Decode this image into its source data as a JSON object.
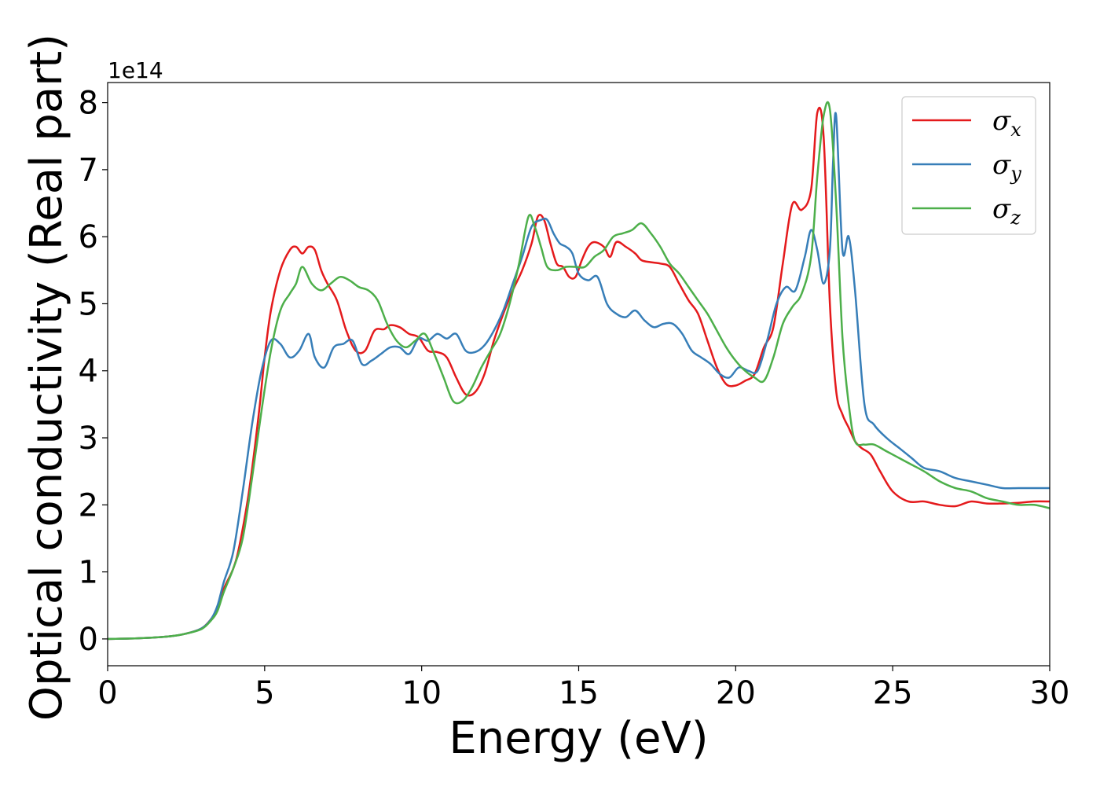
{
  "chart_data": {
    "type": "line",
    "title": "",
    "xlabel": "Energy (eV)",
    "ylabel": "Optical conductivity (Real part)",
    "y_offset_label": "1e14",
    "y_scale": 100000000000000.0,
    "xlim": [
      0,
      30
    ],
    "ylim": [
      -0.4,
      8.3
    ],
    "x_ticks": [
      0,
      5,
      10,
      15,
      20,
      25,
      30
    ],
    "y_ticks": [
      0,
      1,
      2,
      3,
      4,
      5,
      6,
      7,
      8
    ],
    "grid": false,
    "legend_position": "top-right",
    "series": [
      {
        "name": "σx",
        "symbol": "σ",
        "subscript": "x",
        "color": "#e41a1c",
        "x": [
          0,
          1,
          2,
          2.5,
          3,
          3.3,
          3.5,
          3.7,
          4.0,
          4.2,
          4.5,
          4.8,
          5.0,
          5.2,
          5.5,
          5.8,
          6.0,
          6.2,
          6.4,
          6.6,
          6.8,
          7.0,
          7.3,
          7.6,
          7.9,
          8.2,
          8.5,
          8.8,
          9.0,
          9.3,
          9.6,
          9.9,
          10.2,
          10.5,
          10.8,
          11.1,
          11.4,
          11.7,
          12.0,
          12.3,
          12.6,
          12.9,
          13.2,
          13.5,
          13.7,
          13.9,
          14.1,
          14.3,
          14.5,
          14.7,
          14.9,
          15.1,
          15.3,
          15.5,
          15.8,
          16.0,
          16.2,
          16.5,
          16.8,
          17.0,
          17.3,
          17.6,
          17.9,
          18.2,
          18.5,
          18.8,
          19.1,
          19.4,
          19.7,
          20.0,
          20.3,
          20.6,
          20.9,
          21.2,
          21.5,
          21.8,
          22.1,
          22.4,
          22.6,
          22.8,
          23.0,
          23.2,
          23.4,
          23.6,
          23.8,
          24.0,
          24.3,
          24.6,
          25.0,
          25.5,
          26.0,
          26.5,
          27.0,
          27.5,
          28.0,
          28.5,
          29.0,
          29.5,
          30.0
        ],
        "values": [
          0,
          0.01,
          0.04,
          0.08,
          0.16,
          0.3,
          0.45,
          0.75,
          1.05,
          1.4,
          2.2,
          3.3,
          4.2,
          4.9,
          5.5,
          5.8,
          5.85,
          5.75,
          5.85,
          5.8,
          5.5,
          5.3,
          5.05,
          4.6,
          4.3,
          4.3,
          4.6,
          4.62,
          4.68,
          4.65,
          4.55,
          4.5,
          4.3,
          4.28,
          4.2,
          3.9,
          3.65,
          3.68,
          3.95,
          4.45,
          4.85,
          5.2,
          5.5,
          5.9,
          6.3,
          6.25,
          5.9,
          5.6,
          5.55,
          5.4,
          5.4,
          5.65,
          5.85,
          5.92,
          5.85,
          5.7,
          5.92,
          5.85,
          5.75,
          5.65,
          5.62,
          5.6,
          5.55,
          5.3,
          5.05,
          4.85,
          4.45,
          4.05,
          3.8,
          3.78,
          3.85,
          3.95,
          4.35,
          4.65,
          5.6,
          6.48,
          6.4,
          6.7,
          7.85,
          7.5,
          5.0,
          3.7,
          3.35,
          3.15,
          2.95,
          2.85,
          2.75,
          2.5,
          2.2,
          2.05,
          2.05,
          2.0,
          1.98,
          2.05,
          2.02,
          2.02,
          2.03,
          2.05,
          2.05
        ]
      },
      {
        "name": "σy",
        "symbol": "σ",
        "subscript": "y",
        "color": "#377eb8",
        "x": [
          0,
          1,
          2,
          2.5,
          3,
          3.3,
          3.5,
          3.7,
          4.0,
          4.3,
          4.6,
          4.9,
          5.2,
          5.5,
          5.8,
          6.1,
          6.4,
          6.6,
          6.9,
          7.2,
          7.5,
          7.8,
          8.1,
          8.4,
          8.7,
          9.0,
          9.3,
          9.6,
          9.9,
          10.2,
          10.5,
          10.8,
          11.1,
          11.4,
          11.7,
          12.0,
          12.3,
          12.6,
          12.9,
          13.2,
          13.5,
          13.8,
          14.0,
          14.2,
          14.4,
          14.6,
          14.8,
          15.0,
          15.3,
          15.6,
          15.9,
          16.2,
          16.5,
          16.8,
          17.1,
          17.4,
          17.7,
          18.0,
          18.3,
          18.6,
          18.9,
          19.2,
          19.5,
          19.8,
          20.1,
          20.4,
          20.7,
          21.0,
          21.3,
          21.6,
          21.9,
          22.2,
          22.4,
          22.6,
          22.8,
          23.0,
          23.1,
          23.2,
          23.4,
          23.6,
          23.8,
          24.1,
          24.4,
          24.8,
          25.2,
          25.6,
          26.0,
          26.5,
          27.0,
          27.5,
          28.0,
          28.5,
          29.0,
          29.5,
          30.0
        ],
        "values": [
          0,
          0.01,
          0.04,
          0.08,
          0.16,
          0.3,
          0.5,
          0.85,
          1.3,
          2.2,
          3.2,
          4.0,
          4.45,
          4.4,
          4.2,
          4.3,
          4.55,
          4.2,
          4.05,
          4.35,
          4.4,
          4.45,
          4.1,
          4.15,
          4.25,
          4.35,
          4.35,
          4.25,
          4.48,
          4.45,
          4.55,
          4.48,
          4.55,
          4.3,
          4.28,
          4.38,
          4.6,
          4.9,
          5.3,
          5.7,
          6.15,
          6.25,
          6.25,
          6.05,
          5.9,
          5.85,
          5.75,
          5.45,
          5.35,
          5.4,
          5.0,
          4.85,
          4.8,
          4.9,
          4.75,
          4.65,
          4.7,
          4.7,
          4.55,
          4.3,
          4.2,
          4.1,
          3.95,
          3.9,
          4.05,
          4.0,
          4.0,
          4.45,
          5.0,
          5.25,
          5.2,
          5.7,
          6.1,
          5.8,
          5.3,
          5.8,
          7.1,
          7.8,
          5.8,
          6.0,
          5.2,
          3.5,
          3.2,
          3.0,
          2.85,
          2.7,
          2.55,
          2.5,
          2.4,
          2.35,
          2.3,
          2.25,
          2.25,
          2.25,
          2.25
        ]
      },
      {
        "name": "σz",
        "symbol": "σ",
        "subscript": "z",
        "color": "#4daf4a",
        "x": [
          0,
          1,
          2,
          2.5,
          3,
          3.3,
          3.5,
          3.7,
          4.0,
          4.3,
          4.6,
          4.9,
          5.2,
          5.5,
          5.8,
          6.0,
          6.2,
          6.5,
          6.8,
          7.1,
          7.4,
          7.7,
          8.0,
          8.3,
          8.6,
          8.9,
          9.2,
          9.5,
          9.8,
          10.1,
          10.4,
          10.7,
          11.0,
          11.3,
          11.6,
          11.9,
          12.2,
          12.5,
          12.8,
          13.1,
          13.4,
          13.6,
          13.8,
          14.0,
          14.3,
          14.6,
          14.9,
          15.2,
          15.5,
          15.8,
          16.1,
          16.4,
          16.7,
          17.0,
          17.3,
          17.6,
          17.9,
          18.2,
          18.5,
          18.8,
          19.1,
          19.4,
          19.7,
          20.0,
          20.3,
          20.6,
          20.9,
          21.2,
          21.5,
          21.8,
          22.1,
          22.4,
          22.6,
          22.8,
          23.0,
          23.2,
          23.4,
          23.6,
          23.8,
          24.1,
          24.4,
          24.8,
          25.2,
          25.6,
          26.0,
          26.5,
          27.0,
          27.5,
          28.0,
          28.5,
          29.0,
          29.5,
          30.0
        ],
        "values": [
          0,
          0.01,
          0.04,
          0.08,
          0.15,
          0.28,
          0.42,
          0.7,
          1.05,
          1.5,
          2.4,
          3.4,
          4.3,
          4.9,
          5.15,
          5.3,
          5.55,
          5.3,
          5.2,
          5.3,
          5.4,
          5.35,
          5.25,
          5.2,
          5.05,
          4.7,
          4.45,
          4.35,
          4.45,
          4.55,
          4.25,
          3.9,
          3.55,
          3.55,
          3.75,
          4.05,
          4.3,
          4.55,
          5.0,
          5.6,
          6.3,
          6.15,
          5.85,
          5.55,
          5.5,
          5.55,
          5.55,
          5.55,
          5.7,
          5.8,
          6.0,
          6.05,
          6.1,
          6.2,
          6.05,
          5.85,
          5.6,
          5.45,
          5.25,
          5.05,
          4.85,
          4.6,
          4.35,
          4.15,
          4.0,
          3.9,
          3.85,
          4.2,
          4.7,
          4.95,
          5.15,
          5.7,
          6.9,
          7.8,
          7.9,
          6.5,
          4.5,
          3.5,
          2.95,
          2.9,
          2.9,
          2.8,
          2.7,
          2.6,
          2.5,
          2.35,
          2.25,
          2.2,
          2.1,
          2.05,
          2.0,
          2.0,
          1.95
        ]
      }
    ]
  }
}
